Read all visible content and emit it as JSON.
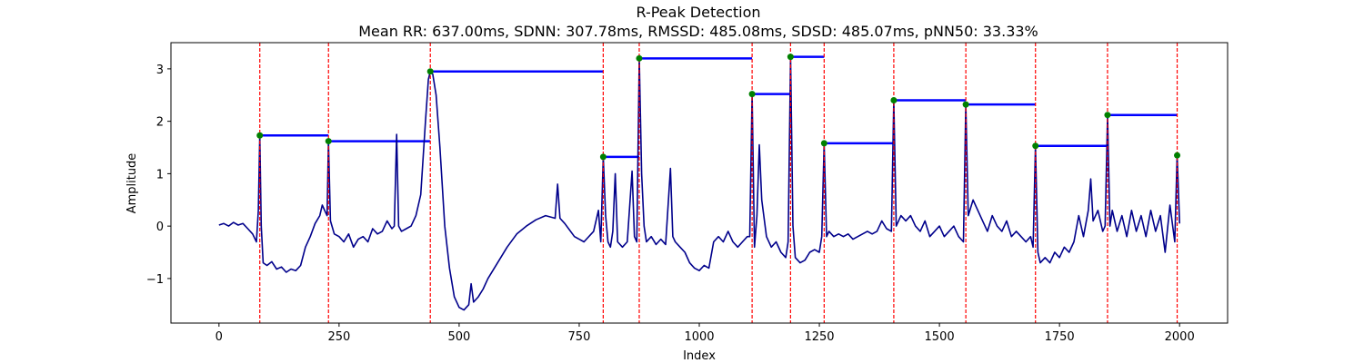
{
  "chart_data": {
    "type": "line",
    "title": "R-Peak Detection",
    "subtitle": "Mean RR: 637.00ms, SDNN: 307.78ms, RMSSD: 485.08ms, SDSD: 485.07ms, pNN50: 33.33%",
    "xlabel": "Index",
    "ylabel": "Amplitude",
    "xlim": [
      -100,
      2100
    ],
    "ylim": [
      -1.85,
      3.5
    ],
    "x_ticks": [
      0,
      250,
      500,
      750,
      1000,
      1250,
      1500,
      1750,
      2000
    ],
    "y_ticks": [
      -1,
      0,
      1,
      2,
      3
    ],
    "x_tick_labels": [
      "0",
      "250",
      "500",
      "750",
      "1000",
      "1250",
      "1500",
      "1750",
      "2000"
    ],
    "y_tick_labels": [
      "−1",
      "0",
      "1",
      "2",
      "3"
    ],
    "grid": false,
    "colors": {
      "signal": "#00008b",
      "peak_marker": "#008000",
      "peak_line": "#ff0000",
      "rr_interval": "#0000ff"
    },
    "signal": [
      [
        0,
        0.02
      ],
      [
        10,
        0.05
      ],
      [
        20,
        0.0
      ],
      [
        30,
        0.07
      ],
      [
        40,
        0.02
      ],
      [
        50,
        0.05
      ],
      [
        60,
        -0.05
      ],
      [
        70,
        -0.15
      ],
      [
        78,
        -0.3
      ],
      [
        82,
        0.3
      ],
      [
        85,
        1.73
      ],
      [
        88,
        0.0
      ],
      [
        92,
        -0.7
      ],
      [
        100,
        -0.75
      ],
      [
        110,
        -0.68
      ],
      [
        120,
        -0.82
      ],
      [
        130,
        -0.78
      ],
      [
        140,
        -0.88
      ],
      [
        150,
        -0.82
      ],
      [
        160,
        -0.85
      ],
      [
        170,
        -0.75
      ],
      [
        180,
        -0.4
      ],
      [
        190,
        -0.2
      ],
      [
        200,
        0.05
      ],
      [
        210,
        0.2
      ],
      [
        215,
        0.4
      ],
      [
        220,
        0.3
      ],
      [
        225,
        0.2
      ],
      [
        228,
        1.62
      ],
      [
        232,
        0.1
      ],
      [
        240,
        -0.15
      ],
      [
        250,
        -0.2
      ],
      [
        260,
        -0.3
      ],
      [
        270,
        -0.15
      ],
      [
        280,
        -0.4
      ],
      [
        290,
        -0.25
      ],
      [
        300,
        -0.2
      ],
      [
        310,
        -0.3
      ],
      [
        320,
        -0.05
      ],
      [
        330,
        -0.15
      ],
      [
        340,
        -0.1
      ],
      [
        350,
        0.1
      ],
      [
        360,
        -0.05
      ],
      [
        365,
        0.0
      ],
      [
        370,
        1.75
      ],
      [
        374,
        0.0
      ],
      [
        380,
        -0.1
      ],
      [
        390,
        -0.05
      ],
      [
        400,
        0.0
      ],
      [
        410,
        0.2
      ],
      [
        420,
        0.6
      ],
      [
        430,
        2.0
      ],
      [
        436,
        2.8
      ],
      [
        440,
        2.95
      ],
      [
        445,
        2.9
      ],
      [
        452,
        2.5
      ],
      [
        460,
        1.5
      ],
      [
        470,
        0.0
      ],
      [
        480,
        -0.8
      ],
      [
        490,
        -1.35
      ],
      [
        500,
        -1.55
      ],
      [
        510,
        -1.6
      ],
      [
        520,
        -1.5
      ],
      [
        525,
        -1.1
      ],
      [
        530,
        -1.45
      ],
      [
        540,
        -1.35
      ],
      [
        550,
        -1.2
      ],
      [
        560,
        -1.0
      ],
      [
        580,
        -0.7
      ],
      [
        600,
        -0.4
      ],
      [
        620,
        -0.15
      ],
      [
        640,
        0.0
      ],
      [
        660,
        0.12
      ],
      [
        680,
        0.2
      ],
      [
        700,
        0.15
      ],
      [
        705,
        0.8
      ],
      [
        710,
        0.15
      ],
      [
        720,
        0.05
      ],
      [
        740,
        -0.2
      ],
      [
        760,
        -0.3
      ],
      [
        780,
        -0.1
      ],
      [
        790,
        0.3
      ],
      [
        795,
        -0.3
      ],
      [
        800,
        1.32
      ],
      [
        805,
        0.2
      ],
      [
        810,
        -0.3
      ],
      [
        815,
        -0.4
      ],
      [
        820,
        -0.1
      ],
      [
        825,
        1.0
      ],
      [
        830,
        -0.3
      ],
      [
        840,
        -0.4
      ],
      [
        850,
        -0.3
      ],
      [
        860,
        1.05
      ],
      [
        865,
        -0.2
      ],
      [
        870,
        -0.3
      ],
      [
        875,
        3.2
      ],
      [
        880,
        1.0
      ],
      [
        885,
        0.0
      ],
      [
        890,
        -0.3
      ],
      [
        900,
        -0.2
      ],
      [
        910,
        -0.35
      ],
      [
        920,
        -0.25
      ],
      [
        930,
        -0.35
      ],
      [
        940,
        1.1
      ],
      [
        945,
        -0.2
      ],
      [
        950,
        -0.3
      ],
      [
        960,
        -0.4
      ],
      [
        970,
        -0.5
      ],
      [
        980,
        -0.7
      ],
      [
        990,
        -0.8
      ],
      [
        1000,
        -0.85
      ],
      [
        1010,
        -0.75
      ],
      [
        1020,
        -0.8
      ],
      [
        1030,
        -0.3
      ],
      [
        1040,
        -0.2
      ],
      [
        1050,
        -0.3
      ],
      [
        1060,
        -0.1
      ],
      [
        1070,
        -0.3
      ],
      [
        1080,
        -0.4
      ],
      [
        1090,
        -0.3
      ],
      [
        1100,
        -0.2
      ],
      [
        1105,
        -0.2
      ],
      [
        1110,
        2.52
      ],
      [
        1115,
        -0.4
      ],
      [
        1120,
        0.2
      ],
      [
        1125,
        1.55
      ],
      [
        1130,
        0.5
      ],
      [
        1140,
        -0.2
      ],
      [
        1150,
        -0.4
      ],
      [
        1160,
        -0.3
      ],
      [
        1170,
        -0.5
      ],
      [
        1180,
        -0.6
      ],
      [
        1185,
        -0.3
      ],
      [
        1190,
        3.23
      ],
      [
        1195,
        0.0
      ],
      [
        1200,
        -0.6
      ],
      [
        1210,
        -0.7
      ],
      [
        1220,
        -0.65
      ],
      [
        1230,
        -0.5
      ],
      [
        1240,
        -0.45
      ],
      [
        1250,
        -0.5
      ],
      [
        1255,
        -0.2
      ],
      [
        1260,
        1.58
      ],
      [
        1265,
        -0.2
      ],
      [
        1270,
        -0.1
      ],
      [
        1280,
        -0.2
      ],
      [
        1290,
        -0.15
      ],
      [
        1300,
        -0.2
      ],
      [
        1310,
        -0.15
      ],
      [
        1320,
        -0.25
      ],
      [
        1330,
        -0.2
      ],
      [
        1340,
        -0.15
      ],
      [
        1350,
        -0.1
      ],
      [
        1360,
        -0.15
      ],
      [
        1370,
        -0.1
      ],
      [
        1380,
        0.1
      ],
      [
        1390,
        -0.05
      ],
      [
        1400,
        -0.1
      ],
      [
        1405,
        2.4
      ],
      [
        1410,
        0.0
      ],
      [
        1420,
        0.2
      ],
      [
        1430,
        0.1
      ],
      [
        1440,
        0.2
      ],
      [
        1450,
        0.0
      ],
      [
        1460,
        -0.1
      ],
      [
        1470,
        0.1
      ],
      [
        1480,
        -0.2
      ],
      [
        1490,
        -0.1
      ],
      [
        1500,
        0.0
      ],
      [
        1510,
        -0.2
      ],
      [
        1520,
        -0.1
      ],
      [
        1530,
        0.0
      ],
      [
        1540,
        -0.2
      ],
      [
        1550,
        -0.3
      ],
      [
        1555,
        2.32
      ],
      [
        1560,
        0.2
      ],
      [
        1570,
        0.5
      ],
      [
        1580,
        0.3
      ],
      [
        1590,
        0.1
      ],
      [
        1600,
        -0.1
      ],
      [
        1610,
        0.2
      ],
      [
        1620,
        0.0
      ],
      [
        1630,
        -0.1
      ],
      [
        1640,
        0.1
      ],
      [
        1650,
        -0.2
      ],
      [
        1660,
        -0.1
      ],
      [
        1670,
        -0.2
      ],
      [
        1680,
        -0.3
      ],
      [
        1690,
        -0.2
      ],
      [
        1695,
        -0.4
      ],
      [
        1700,
        1.53
      ],
      [
        1705,
        -0.5
      ],
      [
        1710,
        -0.7
      ],
      [
        1720,
        -0.6
      ],
      [
        1730,
        -0.7
      ],
      [
        1740,
        -0.5
      ],
      [
        1750,
        -0.6
      ],
      [
        1760,
        -0.4
      ],
      [
        1770,
        -0.5
      ],
      [
        1780,
        -0.3
      ],
      [
        1790,
        0.2
      ],
      [
        1800,
        -0.2
      ],
      [
        1810,
        0.3
      ],
      [
        1815,
        0.9
      ],
      [
        1820,
        0.1
      ],
      [
        1830,
        0.3
      ],
      [
        1840,
        -0.1
      ],
      [
        1845,
        0.0
      ],
      [
        1850,
        2.12
      ],
      [
        1855,
        0.0
      ],
      [
        1860,
        0.3
      ],
      [
        1870,
        -0.1
      ],
      [
        1880,
        0.2
      ],
      [
        1890,
        -0.2
      ],
      [
        1900,
        0.3
      ],
      [
        1910,
        -0.1
      ],
      [
        1920,
        0.2
      ],
      [
        1930,
        -0.2
      ],
      [
        1940,
        0.3
      ],
      [
        1950,
        -0.1
      ],
      [
        1960,
        0.2
      ],
      [
        1970,
        -0.5
      ],
      [
        1980,
        0.4
      ],
      [
        1990,
        -0.3
      ],
      [
        1995,
        1.35
      ],
      [
        2000,
        0.05
      ]
    ],
    "r_peaks": [
      {
        "index": 85,
        "amplitude": 1.73
      },
      {
        "index": 228,
        "amplitude": 1.62
      },
      {
        "index": 440,
        "amplitude": 2.95
      },
      {
        "index": 800,
        "amplitude": 1.32
      },
      {
        "index": 875,
        "amplitude": 3.2
      },
      {
        "index": 1110,
        "amplitude": 2.52
      },
      {
        "index": 1190,
        "amplitude": 3.23
      },
      {
        "index": 1260,
        "amplitude": 1.58
      },
      {
        "index": 1405,
        "amplitude": 2.4
      },
      {
        "index": 1555,
        "amplitude": 2.32
      },
      {
        "index": 1700,
        "amplitude": 1.53
      },
      {
        "index": 1850,
        "amplitude": 2.12
      },
      {
        "index": 1995,
        "amplitude": 1.35
      }
    ]
  }
}
